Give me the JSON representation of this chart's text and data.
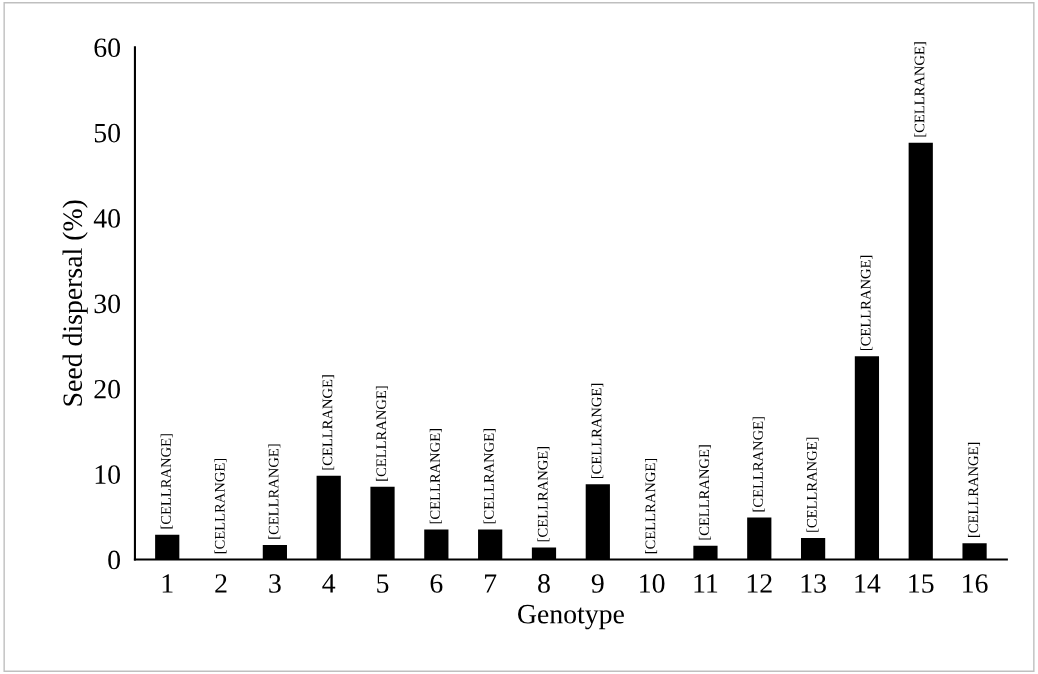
{
  "chart_data": {
    "type": "bar",
    "xlabel": "Genotype",
    "ylabel": "Seed dispersal (%)",
    "categories": [
      "1",
      "2",
      "3",
      "4",
      "5",
      "6",
      "7",
      "8",
      "9",
      "10",
      "11",
      "12",
      "13",
      "14",
      "15",
      "16"
    ],
    "values": [
      2.9,
      0,
      1.7,
      9.8,
      8.5,
      3.5,
      3.5,
      1.4,
      8.8,
      0,
      1.6,
      4.9,
      2.5,
      23.8,
      48.8,
      1.9
    ],
    "color": "#000000",
    "value_labels": [
      "[CELLRANGE]",
      "[CELLRANGE]",
      "[CELLRANGE]",
      "[CELLRANGE]",
      "[CELLRANGE]",
      "[CELLRANGE]",
      "[CELLRANGE]",
      "[CELLRANGE]",
      "[CELLRANGE]",
      "[CELLRANGE]",
      "[CELLRANGE]",
      "[CELLRANGE]",
      "[CELLRANGE]",
      "[CELLRANGE]",
      "[CELLRANGE]",
      "[CELLRANGE]"
    ],
    "ylim": [
      0,
      60
    ],
    "yticks": [
      0,
      10,
      20,
      30,
      40,
      50,
      60
    ],
    "grid": false,
    "legend": false
  }
}
